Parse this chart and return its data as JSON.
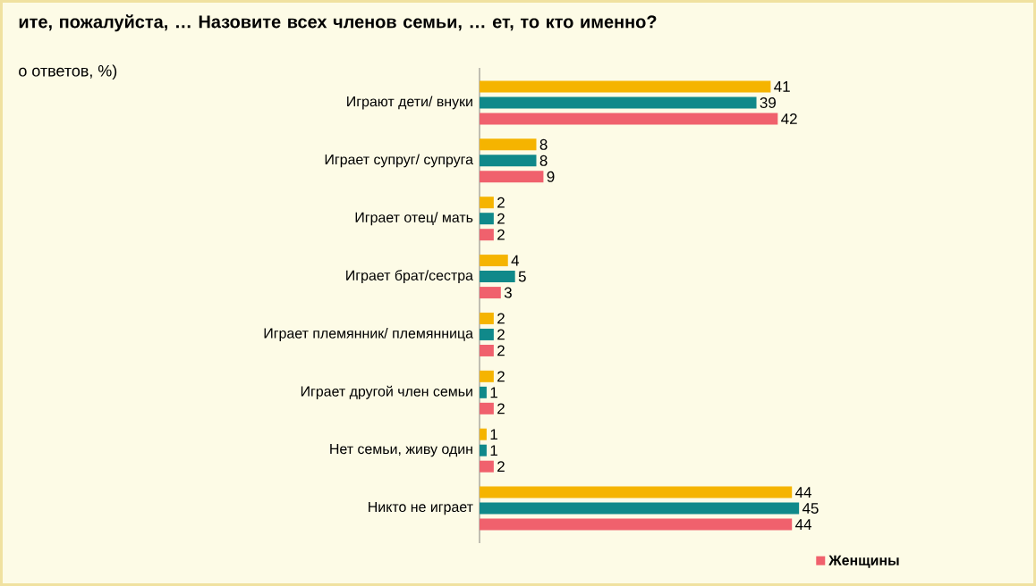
{
  "chart_data": {
    "type": "bar",
    "orientation": "horizontal",
    "title": "ите, пожалуйста, … Назовите всех членов семьи, … ет, то кто именно?",
    "subtitle": "о ответов, %)",
    "categories": [
      "Играют дети/ внуки",
      "Играет супруг/ супруга",
      "Играет отец/ мать",
      "Играет брат/сестра",
      "Играет племянник/ племянница",
      "Играет другой член семьи",
      "Нет семьи, живу один",
      "Никто не играет"
    ],
    "series": [
      {
        "color": "#f5b400",
        "values": [
          41,
          8,
          2,
          4,
          2,
          2,
          1,
          44
        ]
      },
      {
        "color": "#10898a",
        "values": [
          39,
          8,
          2,
          5,
          2,
          1,
          1,
          45
        ]
      },
      {
        "name": "Женщины",
        "color": "#f0616d",
        "values": [
          42,
          9,
          2,
          3,
          2,
          2,
          2,
          44
        ]
      }
    ],
    "data_labels": true,
    "legend": "bottom right"
  }
}
